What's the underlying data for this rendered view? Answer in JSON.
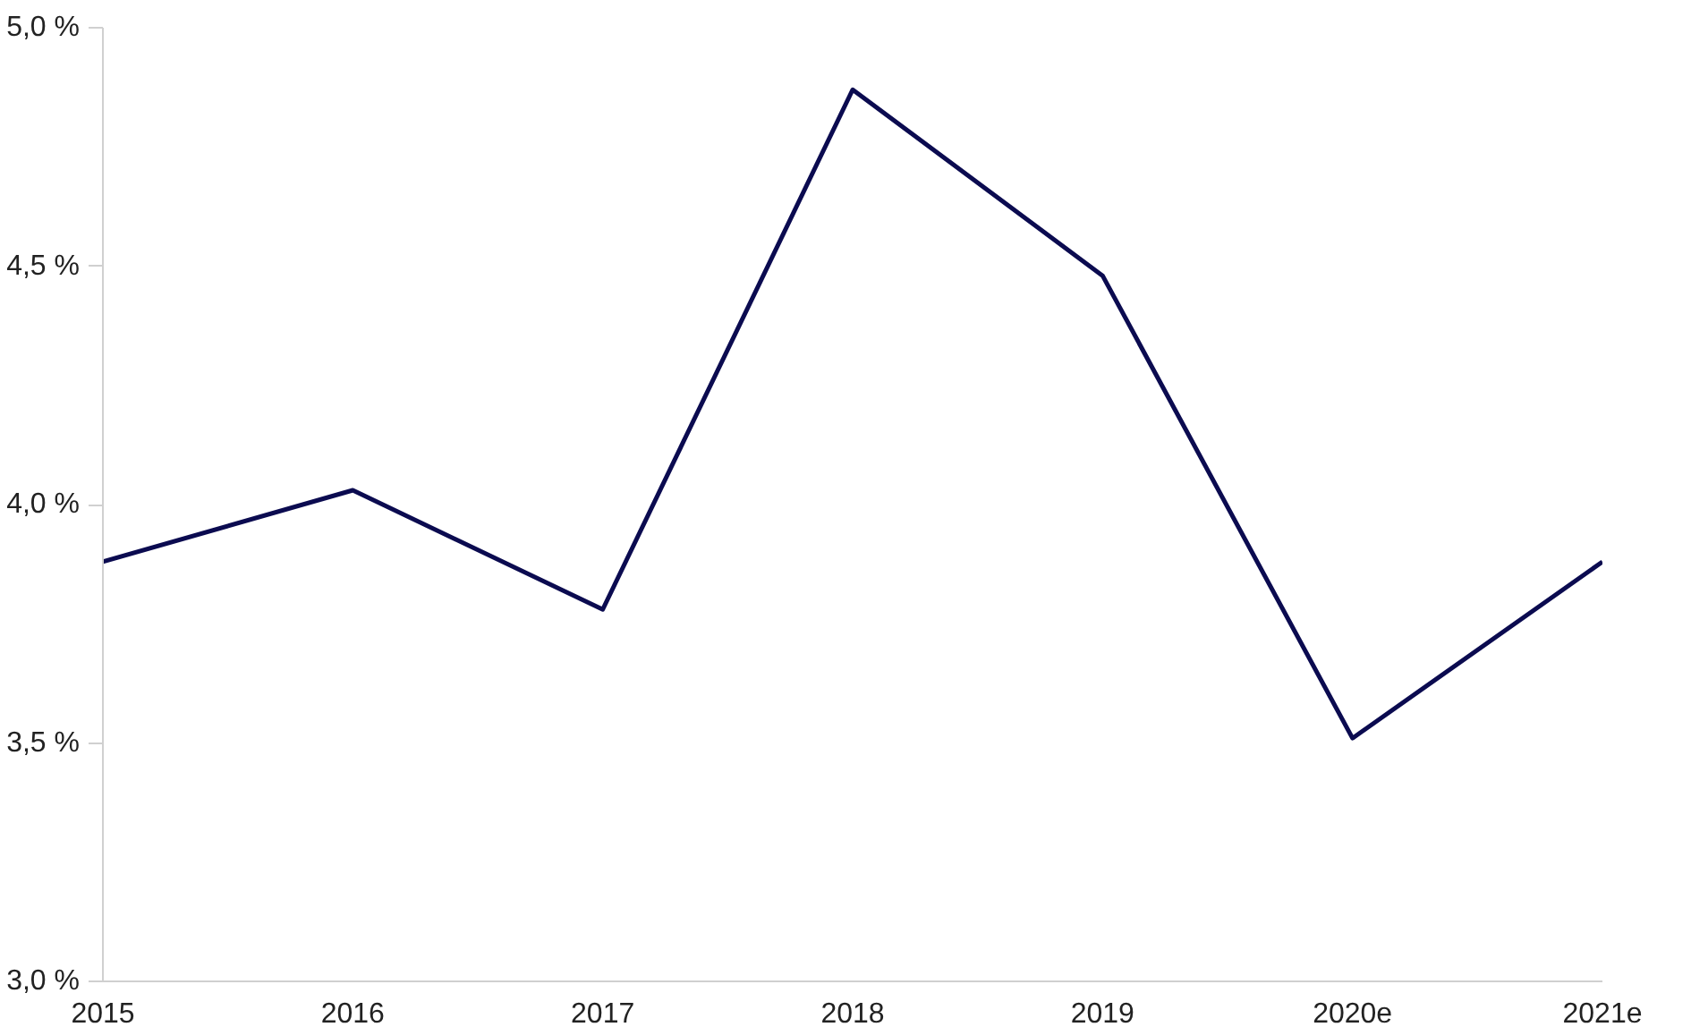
{
  "chart_data": {
    "type": "line",
    "categories": [
      "2015",
      "2016",
      "2017",
      "2018",
      "2019",
      "2020e",
      "2021e"
    ],
    "series": [
      {
        "color": "#0b0b50",
        "values": [
          3.88,
          4.03,
          3.78,
          4.87,
          4.48,
          3.51,
          3.88
        ]
      }
    ],
    "ylim": [
      3.0,
      5.0
    ],
    "yticks": [
      {
        "value": 3.0,
        "label": "3,0 %"
      },
      {
        "value": 3.5,
        "label": "3,5 %"
      },
      {
        "value": 4.0,
        "label": "4,0 %"
      },
      {
        "value": 4.5,
        "label": "4,5 %"
      },
      {
        "value": 5.0,
        "label": "5,0 %"
      }
    ],
    "grid": false,
    "marker": "none",
    "line_style": "solid"
  }
}
